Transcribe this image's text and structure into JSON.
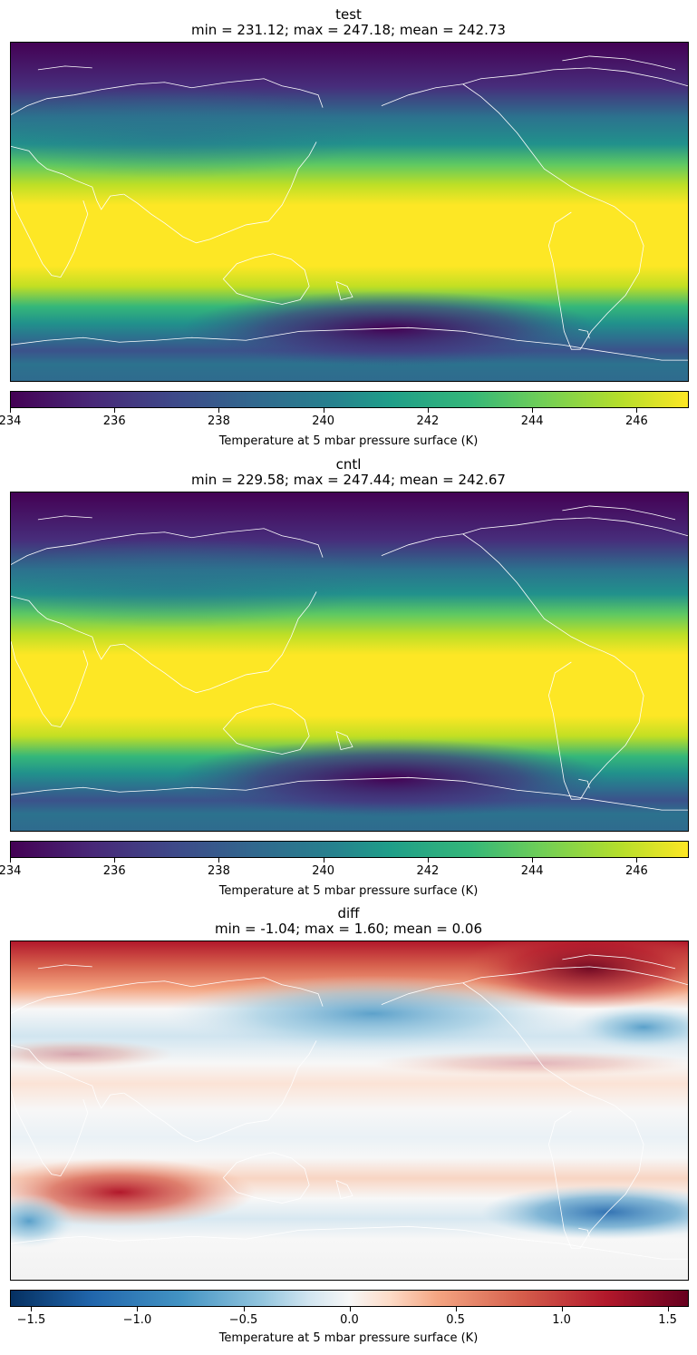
{
  "panels": [
    {
      "name": "test",
      "stats": "min = 231.12; max = 247.18; mean = 242.73",
      "colorbar_label": "Temperature at 5 mbar pressure surface (K)",
      "colormap": "viridis",
      "ticks": [
        "234",
        "236",
        "238",
        "240",
        "242",
        "244",
        "246"
      ]
    },
    {
      "name": "cntl",
      "stats": "min = 229.58; max = 247.44; mean = 242.67",
      "colorbar_label": "Temperature at 5 mbar pressure surface (K)",
      "colormap": "viridis",
      "ticks": [
        "234",
        "236",
        "238",
        "240",
        "242",
        "244",
        "246"
      ]
    },
    {
      "name": "diff",
      "stats": "min = -1.04; max = 1.60; mean = 0.06",
      "colorbar_label": "Temperature at 5 mbar pressure surface (K)",
      "colormap": "RdBu_r",
      "ticks": [
        "−1.5",
        "−1.0",
        "−0.5",
        "0.0",
        "0.5",
        "1.0",
        "1.5"
      ]
    }
  ],
  "chart_data": [
    {
      "type": "heatmap",
      "title": "test",
      "subtitle": "min = 231.12; max = 247.18; mean = 242.73",
      "projection": "plate carree, centred on 180°",
      "colormap": "viridis",
      "clim": [
        234,
        247
      ],
      "colorbar_ticks": [
        234,
        236,
        238,
        240,
        242,
        244,
        246
      ],
      "colorbar_label": "Temperature at 5 mbar pressure surface (K)",
      "zonal_profile": {
        "lat": [
          90,
          70,
          50,
          40,
          30,
          20,
          0,
          -20,
          -30,
          -40,
          -50,
          -60,
          -70,
          -90
        ],
        "value": [
          234,
          234.5,
          238,
          241,
          245,
          247,
          247,
          247,
          245,
          241,
          238,
          235.5,
          238,
          238
        ]
      }
    },
    {
      "type": "heatmap",
      "title": "cntl",
      "subtitle": "min = 229.58; max = 247.44; mean = 242.67",
      "projection": "plate carree, centred on 180°",
      "colormap": "viridis",
      "clim": [
        234,
        247
      ],
      "colorbar_ticks": [
        234,
        236,
        238,
        240,
        242,
        244,
        246
      ],
      "colorbar_label": "Temperature at 5 mbar pressure surface (K)",
      "zonal_profile": {
        "lat": [
          90,
          70,
          50,
          40,
          30,
          20,
          0,
          -20,
          -30,
          -40,
          -50,
          -60,
          -70,
          -90
        ],
        "value": [
          234,
          234.5,
          237.5,
          241,
          245,
          247,
          247,
          247,
          245,
          241,
          238,
          235,
          238,
          238
        ]
      }
    },
    {
      "type": "heatmap",
      "title": "diff",
      "subtitle": "min = -1.04; max = 1.60; mean = 0.06",
      "projection": "plate carree, centred on 180°",
      "colormap": "RdBu_r",
      "clim": [
        -1.6,
        1.6
      ],
      "colorbar_ticks": [
        -1.5,
        -1.0,
        -0.5,
        0.0,
        0.5,
        1.0,
        1.5
      ],
      "colorbar_label": "Temperature at 5 mbar pressure surface (K)"
    }
  ]
}
